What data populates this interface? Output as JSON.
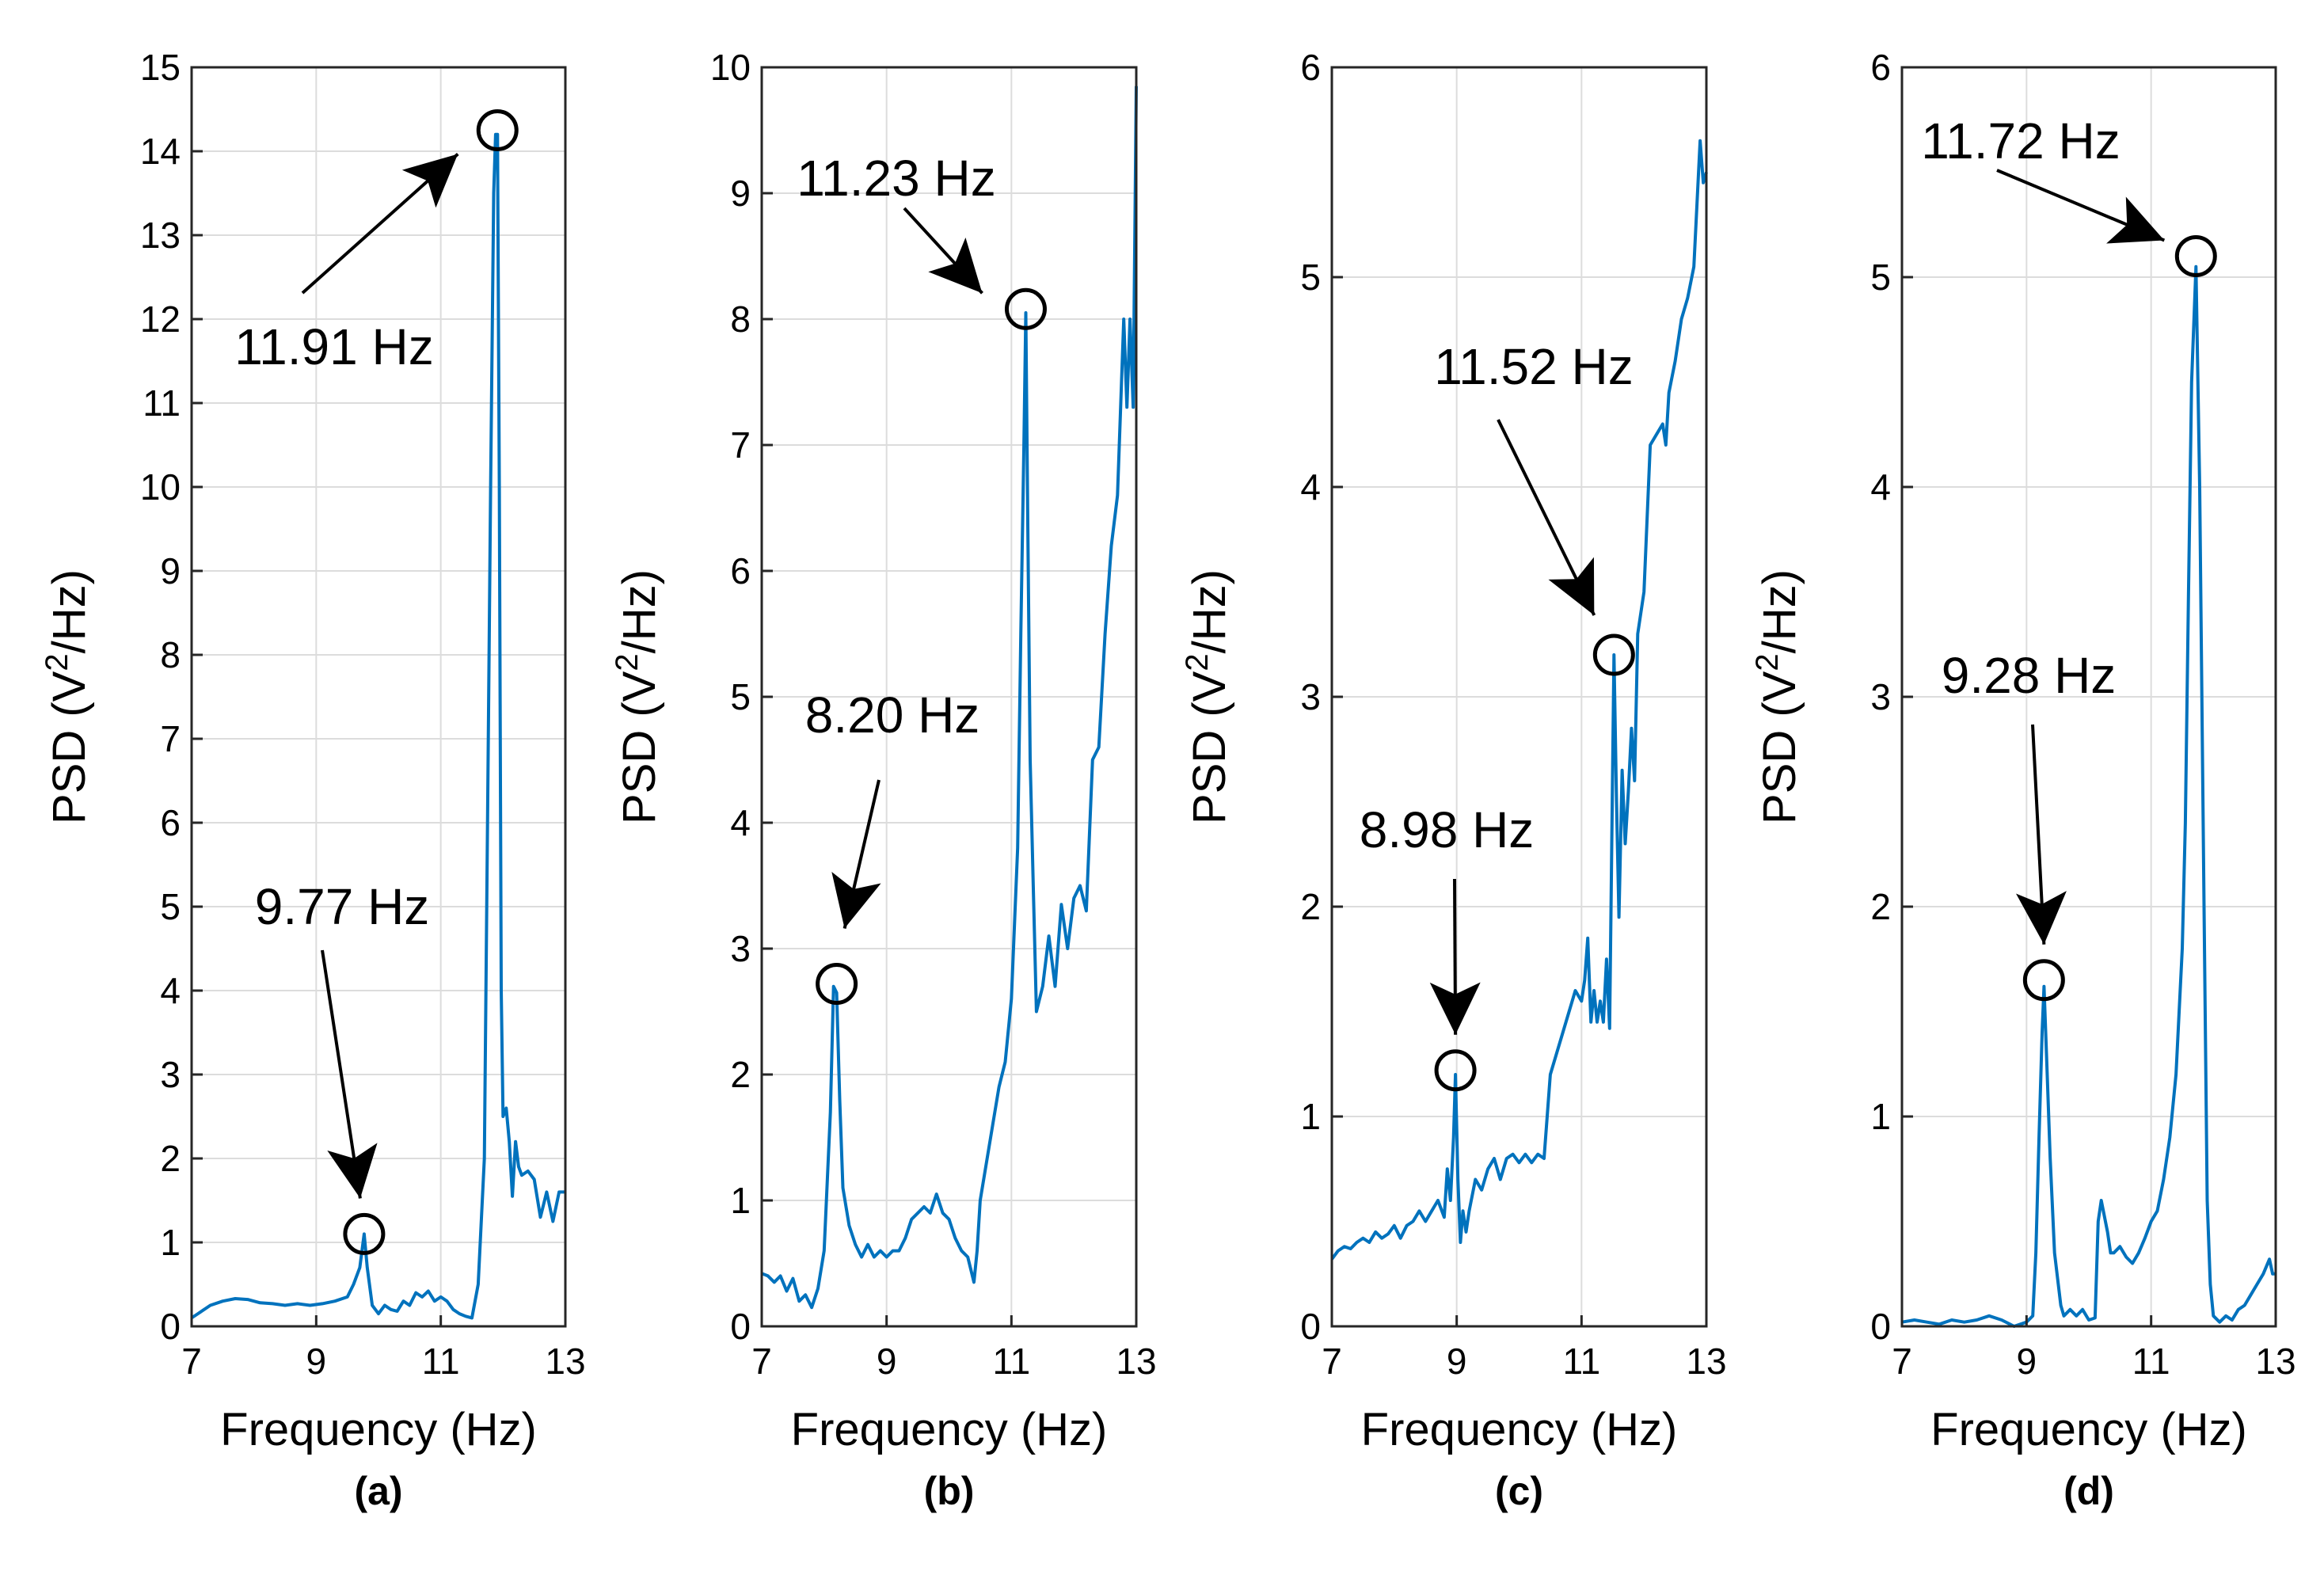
{
  "chart_data": [
    {
      "type": "line",
      "panel_label": "(a)",
      "xlabel": "Frequency (Hz)",
      "ylabel": "PSD (V²/Hz)",
      "xlim": [
        7,
        13
      ],
      "ylim": [
        0,
        15
      ],
      "xticks": [
        7,
        9,
        11,
        13
      ],
      "yticks": [
        0,
        1,
        2,
        3,
        4,
        5,
        6,
        7,
        8,
        9,
        10,
        11,
        12,
        13,
        14,
        15
      ],
      "grid": true,
      "series": [
        {
          "name": "PSD",
          "color": "#0072bd",
          "x": [
            7.0,
            7.1,
            7.3,
            7.5,
            7.7,
            7.9,
            8.1,
            8.3,
            8.5,
            8.7,
            8.9,
            9.1,
            9.3,
            9.5,
            9.6,
            9.7,
            9.77,
            9.82,
            9.9,
            10.0,
            10.1,
            10.2,
            10.3,
            10.4,
            10.5,
            10.6,
            10.7,
            10.8,
            10.9,
            11.0,
            11.1,
            11.2,
            11.3,
            11.4,
            11.5,
            11.6,
            11.7,
            11.75,
            11.8,
            11.85,
            11.88,
            11.91,
            11.94,
            11.97,
            12.0,
            12.05,
            12.1,
            12.15,
            12.2,
            12.25,
            12.3,
            12.4,
            12.5,
            12.6,
            12.7,
            12.8,
            12.9,
            13.0
          ],
          "y": [
            0.1,
            0.15,
            0.25,
            0.3,
            0.33,
            0.32,
            0.28,
            0.27,
            0.25,
            0.27,
            0.25,
            0.27,
            0.3,
            0.35,
            0.5,
            0.7,
            1.1,
            0.7,
            0.25,
            0.15,
            0.25,
            0.2,
            0.18,
            0.3,
            0.25,
            0.4,
            0.35,
            0.42,
            0.3,
            0.35,
            0.3,
            0.2,
            0.15,
            0.12,
            0.1,
            0.5,
            2.0,
            6.0,
            10.0,
            13.5,
            14.2,
            14.2,
            10.0,
            4.0,
            2.5,
            2.6,
            2.2,
            1.55,
            2.2,
            1.9,
            1.8,
            1.85,
            1.75,
            1.3,
            1.6,
            1.25,
            1.6,
            1.6
          ]
        }
      ],
      "annotations": [
        {
          "text": "11.91 Hz",
          "x": 11.91,
          "y": 14.25
        },
        {
          "text": "9.77 Hz",
          "x": 9.77,
          "y": 1.1
        }
      ]
    },
    {
      "type": "line",
      "panel_label": "(b)",
      "xlabel": "Frequency (Hz)",
      "ylabel": "PSD (V²/Hz)",
      "xlim": [
        7,
        13
      ],
      "ylim": [
        0,
        10
      ],
      "xticks": [
        7,
        9,
        11,
        13
      ],
      "yticks": [
        0,
        1,
        2,
        3,
        4,
        5,
        6,
        7,
        8,
        9,
        10
      ],
      "grid": true,
      "series": [
        {
          "name": "PSD",
          "color": "#0072bd",
          "x": [
            7.0,
            7.1,
            7.2,
            7.3,
            7.4,
            7.5,
            7.6,
            7.7,
            7.8,
            7.9,
            8.0,
            8.1,
            8.15,
            8.2,
            8.25,
            8.3,
            8.4,
            8.5,
            8.6,
            8.7,
            8.8,
            8.9,
            9.0,
            9.1,
            9.2,
            9.3,
            9.4,
            9.5,
            9.6,
            9.7,
            9.8,
            9.9,
            10.0,
            10.1,
            10.2,
            10.3,
            10.4,
            10.45,
            10.5,
            10.6,
            10.7,
            10.8,
            10.9,
            11.0,
            11.1,
            11.15,
            11.2,
            11.23,
            11.26,
            11.3,
            11.35,
            11.4,
            11.5,
            11.6,
            11.7,
            11.8,
            11.9,
            12.0,
            12.1,
            12.2,
            12.3,
            12.4,
            12.5,
            12.6,
            12.7,
            12.8,
            12.85,
            12.9,
            12.95,
            13.0
          ],
          "y": [
            0.42,
            0.4,
            0.35,
            0.4,
            0.28,
            0.38,
            0.2,
            0.25,
            0.15,
            0.3,
            0.6,
            1.7,
            2.7,
            2.65,
            1.8,
            1.1,
            0.8,
            0.65,
            0.55,
            0.65,
            0.55,
            0.6,
            0.55,
            0.6,
            0.6,
            0.7,
            0.85,
            0.9,
            0.95,
            0.9,
            1.05,
            0.9,
            0.85,
            0.7,
            0.6,
            0.55,
            0.35,
            0.6,
            1.0,
            1.3,
            1.6,
            1.9,
            2.1,
            2.6,
            3.8,
            5.5,
            7.0,
            8.05,
            6.5,
            4.5,
            3.5,
            2.5,
            2.7,
            3.1,
            2.7,
            3.35,
            3.0,
            3.4,
            3.5,
            3.3,
            4.5,
            4.6,
            5.5,
            6.2,
            6.6,
            8.0,
            7.3,
            8.0,
            7.3,
            9.85
          ]
        }
      ],
      "annotations": [
        {
          "text": "11.23 Hz",
          "x": 11.23,
          "y": 8.08
        },
        {
          "text": "8.20 Hz",
          "x": 8.2,
          "y": 2.72
        }
      ]
    },
    {
      "type": "line",
      "panel_label": "(c)",
      "xlabel": "Frequency (Hz)",
      "ylabel": "PSD (V²/Hz)",
      "xlim": [
        7,
        13
      ],
      "ylim": [
        0,
        6
      ],
      "xticks": [
        7,
        9,
        11,
        13
      ],
      "yticks": [
        0,
        1,
        2,
        3,
        4,
        5,
        6
      ],
      "grid": true,
      "series": [
        {
          "name": "PSD",
          "color": "#0072bd",
          "x": [
            7.0,
            7.1,
            7.2,
            7.3,
            7.4,
            7.5,
            7.6,
            7.7,
            7.8,
            7.9,
            8.0,
            8.1,
            8.2,
            8.3,
            8.4,
            8.5,
            8.6,
            8.7,
            8.8,
            8.85,
            8.9,
            8.95,
            8.98,
            9.02,
            9.06,
            9.1,
            9.15,
            9.2,
            9.3,
            9.4,
            9.5,
            9.6,
            9.7,
            9.8,
            9.9,
            10.0,
            10.1,
            10.2,
            10.3,
            10.4,
            10.5,
            10.6,
            10.7,
            10.8,
            10.9,
            11.0,
            11.05,
            11.1,
            11.15,
            11.2,
            11.25,
            11.3,
            11.35,
            11.4,
            11.45,
            11.48,
            11.52,
            11.56,
            11.6,
            11.65,
            11.7,
            11.75,
            11.8,
            11.85,
            11.9,
            12.0,
            12.1,
            12.2,
            12.3,
            12.35,
            12.4,
            12.5,
            12.6,
            12.7,
            12.8,
            12.9,
            12.95,
            13.0
          ],
          "y": [
            0.32,
            0.36,
            0.38,
            0.37,
            0.4,
            0.42,
            0.4,
            0.45,
            0.42,
            0.44,
            0.48,
            0.42,
            0.48,
            0.5,
            0.55,
            0.5,
            0.55,
            0.6,
            0.52,
            0.75,
            0.6,
            0.9,
            1.2,
            0.7,
            0.4,
            0.55,
            0.45,
            0.55,
            0.7,
            0.65,
            0.75,
            0.8,
            0.7,
            0.8,
            0.82,
            0.78,
            0.82,
            0.78,
            0.82,
            0.8,
            1.2,
            1.3,
            1.4,
            1.5,
            1.6,
            1.55,
            1.65,
            1.85,
            1.45,
            1.6,
            1.45,
            1.55,
            1.45,
            1.75,
            1.42,
            2.2,
            3.2,
            2.5,
            1.95,
            2.65,
            2.3,
            2.55,
            2.85,
            2.6,
            3.3,
            3.5,
            4.2,
            4.25,
            4.3,
            4.2,
            4.45,
            4.6,
            4.8,
            4.9,
            5.05,
            5.65,
            5.45,
            5.5
          ]
        }
      ],
      "annotations": [
        {
          "text": "11.52 Hz",
          "x": 11.52,
          "y": 3.2
        },
        {
          "text": "8.98 Hz",
          "x": 8.98,
          "y": 1.22
        }
      ]
    },
    {
      "type": "line",
      "panel_label": "(d)",
      "xlabel": "Frequency (Hz)",
      "ylabel": "PSD (V²/Hz)",
      "xlim": [
        7,
        13
      ],
      "ylim": [
        0,
        6
      ],
      "xticks": [
        7,
        9,
        11,
        13
      ],
      "yticks": [
        0,
        1,
        2,
        3,
        4,
        5,
        6
      ],
      "grid": true,
      "series": [
        {
          "name": "PSD",
          "color": "#0072bd",
          "x": [
            7.0,
            7.2,
            7.4,
            7.6,
            7.8,
            8.0,
            8.2,
            8.4,
            8.6,
            8.8,
            9.0,
            9.1,
            9.15,
            9.2,
            9.25,
            9.28,
            9.32,
            9.38,
            9.45,
            9.55,
            9.6,
            9.7,
            9.8,
            9.9,
            10.0,
            10.1,
            10.15,
            10.2,
            10.3,
            10.35,
            10.4,
            10.5,
            10.6,
            10.7,
            10.8,
            10.9,
            11.0,
            11.1,
            11.2,
            11.3,
            11.4,
            11.5,
            11.55,
            11.6,
            11.65,
            11.72,
            11.78,
            11.85,
            11.9,
            11.95,
            12.0,
            12.1,
            12.2,
            12.3,
            12.4,
            12.5,
            12.6,
            12.7,
            12.8,
            12.9,
            12.95,
            13.0
          ],
          "y": [
            0.02,
            0.03,
            0.02,
            0.01,
            0.03,
            0.02,
            0.03,
            0.05,
            0.03,
            0.0,
            0.02,
            0.05,
            0.35,
            0.9,
            1.4,
            1.62,
            1.3,
            0.8,
            0.35,
            0.1,
            0.05,
            0.08,
            0.05,
            0.08,
            0.03,
            0.04,
            0.5,
            0.6,
            0.45,
            0.35,
            0.35,
            0.38,
            0.33,
            0.3,
            0.35,
            0.42,
            0.5,
            0.55,
            0.7,
            0.9,
            1.2,
            1.8,
            2.4,
            3.5,
            4.5,
            5.05,
            4.0,
            2.0,
            0.6,
            0.2,
            0.05,
            0.02,
            0.05,
            0.03,
            0.08,
            0.1,
            0.15,
            0.2,
            0.25,
            0.32,
            0.25,
            0.25
          ]
        }
      ],
      "annotations": [
        {
          "text": "11.72 Hz",
          "x": 11.72,
          "y": 5.1
        },
        {
          "text": "9.28 Hz",
          "x": 9.28,
          "y": 1.65
        }
      ]
    }
  ]
}
